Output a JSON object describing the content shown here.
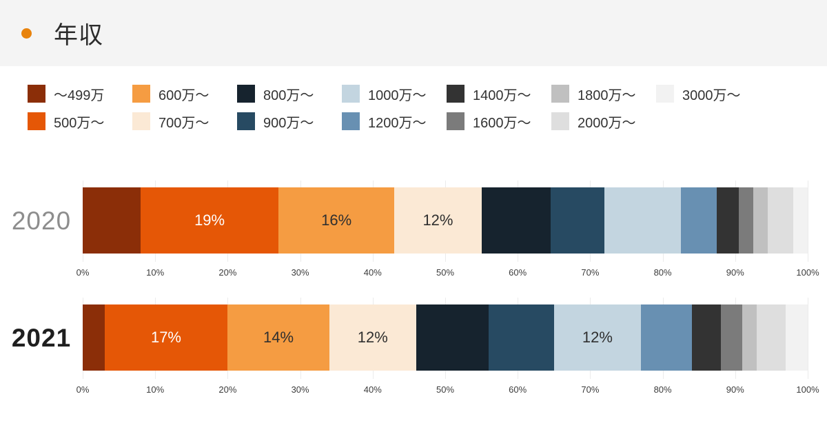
{
  "page": {
    "header_background": "#f4f4f4",
    "panel_background": "#ffffff",
    "gridline_color": "#ebebeb"
  },
  "header": {
    "title": "年収",
    "bullet_color": "#e8830d"
  },
  "chart_data": {
    "type": "bar",
    "variant": "horizontal-stacked-percent",
    "title": "年収",
    "legend_position": "top",
    "grid": true,
    "xlim": [
      0,
      100
    ],
    "x_ticks": [
      "0%",
      "10%",
      "20%",
      "30%",
      "40%",
      "50%",
      "60%",
      "70%",
      "80%",
      "90%",
      "100%"
    ],
    "categories": [
      "〜499万",
      "500万〜",
      "600万〜",
      "700万〜",
      "800万〜",
      "900万〜",
      "1000万〜",
      "1200万〜",
      "1400万〜",
      "1600万〜",
      "1800万〜",
      "2000万〜",
      "3000万〜"
    ],
    "colors": [
      "#8b2e08",
      "#e55706",
      "#f59c42",
      "#fbe9d5",
      "#16232e",
      "#274a62",
      "#c3d5e0",
      "#6890b2",
      "#333333",
      "#7b7b7b",
      "#c0c0c0",
      "#dedede",
      "#f2f2f2"
    ],
    "label_colors": [
      "#ffffff",
      "#ffffff",
      "#2f2f2f",
      "#2f2f2f",
      "#ffffff",
      "#ffffff",
      "#2f2f2f",
      "#2f2f2f",
      "#ffffff",
      "#ffffff",
      "#2f2f2f",
      "#2f2f2f",
      "#2f2f2f"
    ],
    "series": [
      {
        "name": "2020",
        "name_color": "#8d8d8d",
        "name_weight": "400",
        "values": [
          8,
          19,
          16,
          12,
          9.5,
          7.5,
          10.5,
          5,
          3,
          2,
          2,
          3.5,
          2
        ],
        "labels": [
          "",
          "19%",
          "16%",
          "12%",
          "",
          "",
          "",
          "",
          "",
          "",
          "",
          "",
          ""
        ]
      },
      {
        "name": "2021",
        "name_color": "#1f1f1f",
        "name_weight": "700",
        "values": [
          3,
          17,
          14,
          12,
          10,
          9,
          12,
          7,
          4,
          3,
          2,
          4,
          3
        ],
        "labels": [
          "",
          "17%",
          "14%",
          "12%",
          "",
          "",
          "12%",
          "",
          "",
          "",
          "",
          "",
          ""
        ]
      }
    ]
  }
}
